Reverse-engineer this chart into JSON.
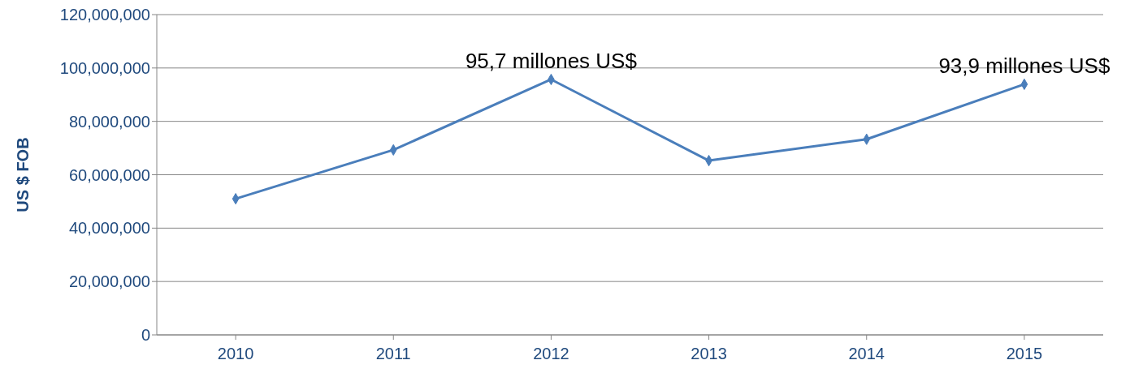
{
  "chart_data": {
    "type": "line",
    "ylabel": "US $ FOB",
    "categories": [
      "2010",
      "2011",
      "2012",
      "2013",
      "2014",
      "2015"
    ],
    "series": [
      {
        "color": "#4a7ebb",
        "values": [
          51000000,
          69300000,
          95700000,
          65300000,
          73300000,
          93900000
        ]
      }
    ],
    "ylim": [
      0,
      120000000
    ],
    "yticks": [
      0,
      {
        "value": 20000000,
        "label": "20,000,000"
      },
      {
        "value": 40000000,
        "label": "40,000,000"
      },
      {
        "value": 60000000,
        "label": "60,000,000"
      },
      {
        "value": 80000000,
        "label": "80,000,000"
      },
      {
        "value": 100000000,
        "label": "100,000,000"
      },
      {
        "value": 120000000,
        "label": "120,000,000"
      }
    ],
    "grid": "y",
    "marker": "diamond",
    "line_style": "solid",
    "annotations": [
      {
        "text": "95,7 millones US$",
        "x": "2012",
        "y": 95700000
      },
      {
        "text": "93,9 millones US$",
        "x": "2015",
        "y": 93900000
      }
    ]
  }
}
